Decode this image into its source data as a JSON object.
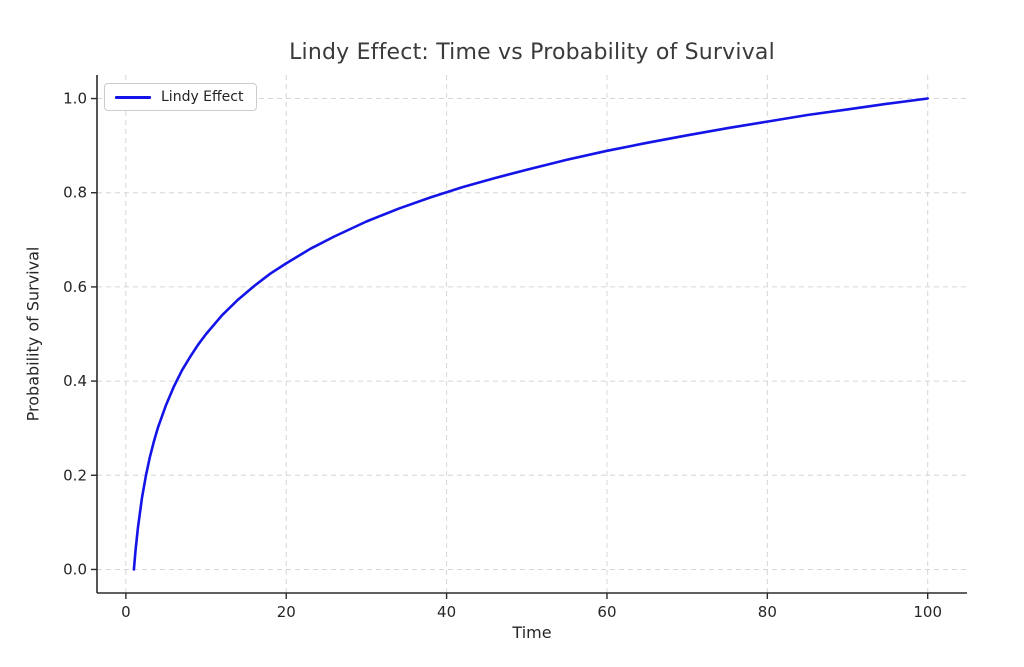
{
  "figure": {
    "background": "#ffffff"
  },
  "colors": {
    "line": "#1414e8",
    "grid": "#d6d6d6",
    "axis": "#2b2b2b",
    "tick_text": "#262626",
    "title_text": "#3a3a3a",
    "legend_border": "#cccccc"
  },
  "chart_data": {
    "type": "line",
    "title": "Lindy Effect: Time vs Probability of Survival",
    "xlabel": "Time",
    "ylabel": "Probability of Survival",
    "xlim": [
      -3.6,
      104.9
    ],
    "ylim": [
      -0.05,
      1.05
    ],
    "x_ticks": [
      0,
      20,
      40,
      60,
      80,
      100
    ],
    "x_tick_labels": [
      "0",
      "20",
      "40",
      "60",
      "80",
      "100"
    ],
    "y_ticks": [
      0,
      0.2,
      0.4,
      0.6,
      0.8,
      1.0
    ],
    "y_tick_labels": [
      "0.0",
      "0.2",
      "0.4",
      "0.6",
      "0.8",
      "1.0"
    ],
    "grid": true,
    "grid_style": "dashed",
    "legend": {
      "position": "upper-left",
      "entries": [
        {
          "label": "Lindy Effect",
          "color": "#1414e8"
        }
      ]
    },
    "series": [
      {
        "name": "Lindy Effect",
        "color": "#1414e8",
        "line_width": 2.6,
        "x": [
          1,
          1.2,
          1.5,
          2,
          2.5,
          3,
          3.5,
          4,
          5,
          6,
          7,
          8,
          9,
          10,
          12,
          14,
          16,
          18,
          20,
          23,
          26,
          30,
          34,
          38,
          42,
          46,
          50,
          55,
          60,
          65,
          70,
          75,
          80,
          85,
          90,
          95,
          100
        ],
        "y": [
          0,
          0.04,
          0.088,
          0.151,
          0.199,
          0.239,
          0.272,
          0.301,
          0.349,
          0.389,
          0.423,
          0.451,
          0.477,
          0.5,
          0.54,
          0.573,
          0.602,
          0.628,
          0.65,
          0.681,
          0.707,
          0.739,
          0.766,
          0.79,
          0.812,
          0.831,
          0.849,
          0.87,
          0.889,
          0.906,
          0.922,
          0.937,
          0.951,
          0.965,
          0.977,
          0.989,
          1.0
        ]
      }
    ]
  }
}
